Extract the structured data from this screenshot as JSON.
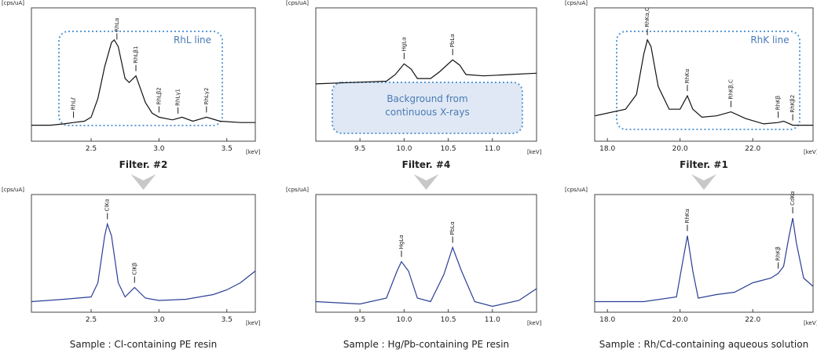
{
  "chart_data": [
    {
      "type": "line",
      "y_label": "[cps/uA]",
      "x_label": "[keV]",
      "color": "#111111",
      "xlim": [
        2.06,
        3.71
      ],
      "ylim": [
        0,
        100
      ],
      "xticks": [
        2.5,
        {
          "value": 3.0,
          "label": "3.0"
        },
        3.5
      ],
      "x": [
        2.06,
        2.2,
        2.3,
        2.37,
        2.45,
        2.5,
        2.55,
        2.6,
        2.65,
        2.67,
        2.7,
        2.75,
        2.78,
        2.83,
        2.9,
        2.95,
        3.0,
        3.1,
        3.17,
        3.25,
        3.35,
        3.45,
        3.6,
        3.71
      ],
      "values": [
        12,
        12,
        13,
        14,
        15,
        18,
        32,
        56,
        74,
        76,
        71,
        47,
        44,
        49,
        29,
        21,
        18,
        16,
        18,
        15,
        18,
        15,
        14,
        14
      ],
      "annotations": [
        {
          "text": "RhLℓ",
          "x": 2.37
        },
        {
          "text": "RhLα",
          "x": 2.69
        },
        {
          "text": "RhLβ1",
          "x": 2.83
        },
        {
          "text": "RhLβ2",
          "x": 3.0
        },
        {
          "text": "RhLγ1",
          "x": 3.14
        },
        {
          "text": "RhLγ2",
          "x": 3.35
        }
      ],
      "overlay": [
        "RhL line"
      ]
    },
    {
      "type": "line",
      "y_label": "[cps/uA]",
      "x_label": "[keV]",
      "color": "#111111",
      "xlim": [
        9.0,
        11.5
      ],
      "ylim": [
        0,
        100
      ],
      "xticks": [
        9.5,
        {
          "value": 10.0,
          "label": "10.0"
        },
        10.5,
        {
          "value": 11.0,
          "label": "11.0"
        }
      ],
      "x": [
        9.0,
        9.4,
        9.8,
        9.9,
        10.0,
        10.08,
        10.15,
        10.3,
        10.4,
        10.55,
        10.63,
        10.7,
        10.9,
        11.2,
        11.5
      ],
      "values": [
        43,
        44,
        45,
        50,
        58,
        54,
        47,
        47,
        52,
        61,
        57,
        50,
        49,
        50,
        51
      ],
      "annotations": [
        {
          "text": "HgLα",
          "x": 10.0
        },
        {
          "text": "PbLα",
          "x": 10.55
        }
      ],
      "overlay": [
        "Background from",
        "continuous X-rays"
      ]
    },
    {
      "type": "line",
      "y_label": "[cps/uA]",
      "x_label": "[keV]",
      "color": "#111111",
      "xlim": [
        17.65,
        23.66
      ],
      "ylim": [
        0,
        100
      ],
      "xticks": [
        {
          "value": 18.0,
          "label": "18.0"
        },
        {
          "value": 20.0,
          "label": "20.0"
        },
        {
          "value": 22.0,
          "label": "22.0"
        }
      ],
      "x": [
        17.65,
        18.5,
        18.8,
        19.0,
        19.1,
        19.2,
        19.4,
        19.7,
        20.0,
        20.2,
        20.35,
        20.6,
        21.0,
        21.4,
        21.8,
        22.3,
        22.7,
        22.85,
        23.1,
        23.66
      ],
      "values": [
        19,
        24,
        35,
        65,
        76,
        71,
        41,
        24,
        24,
        34,
        24,
        18,
        19,
        22,
        17,
        13,
        14,
        15,
        12,
        12
      ],
      "annotations": [
        {
          "text": "RhKα,C",
          "x": 19.1
        },
        {
          "text": "RhKα",
          "x": 20.2
        },
        {
          "text": "RhKβ,C",
          "x": 21.4
        },
        {
          "text": "RhKβ",
          "x": 22.7
        },
        {
          "text": "RhKβ2",
          "x": 23.1
        }
      ],
      "overlay": [
        "RhK line"
      ]
    },
    {
      "type": "line",
      "y_label": "[cps/uA]",
      "x_label": "[keV]",
      "color": "#2b3f96",
      "caption": "Sample : Cl-containing PE resin",
      "xlim": [
        2.06,
        3.71
      ],
      "ylim": [
        0,
        100
      ],
      "xticks": [
        2.5,
        {
          "value": 3.0,
          "label": "3.0"
        },
        3.5
      ],
      "x": [
        2.06,
        2.3,
        2.5,
        2.55,
        2.6,
        2.62,
        2.65,
        2.7,
        2.75,
        2.82,
        2.9,
        3.0,
        3.2,
        3.4,
        3.5,
        3.6,
        3.71
      ],
      "values": [
        9,
        11,
        13,
        25,
        65,
        75,
        65,
        25,
        13,
        21,
        12,
        10,
        11,
        15,
        19,
        25,
        35
      ],
      "annotations": [
        {
          "text": "ClKα",
          "x": 2.62
        },
        {
          "text": "ClKβ",
          "x": 2.82
        }
      ]
    },
    {
      "type": "line",
      "y_label": "[cps/uA]",
      "x_label": "[keV]",
      "color": "#2b3f96",
      "caption": "Sample : Hg/Pb-containing PE resin",
      "xlim": [
        9.0,
        11.5
      ],
      "ylim": [
        0,
        100
      ],
      "xticks": [
        9.5,
        {
          "value": 10.0,
          "label": "10.0"
        },
        10.5,
        {
          "value": 11.0,
          "label": "11.0"
        }
      ],
      "x": [
        9.0,
        9.5,
        9.8,
        9.92,
        9.97,
        10.05,
        10.15,
        10.3,
        10.45,
        10.55,
        10.65,
        10.8,
        11.0,
        11.3,
        11.5
      ],
      "values": [
        9,
        7,
        12,
        35,
        43,
        35,
        12,
        9,
        32,
        55,
        35,
        9,
        5,
        10,
        20
      ],
      "annotations": [
        {
          "text": "HgLα",
          "x": 9.97
        },
        {
          "text": "PbLα",
          "x": 10.55
        }
      ]
    },
    {
      "type": "line",
      "y_label": "[cps/uA]",
      "x_label": "[keV]",
      "color": "#2b3f96",
      "caption": "Sample : Rh/Cd-containing aqueous solution",
      "xlim": [
        17.65,
        23.66
      ],
      "ylim": [
        0,
        100
      ],
      "xticks": [
        {
          "value": 18.0,
          "label": "18.0"
        },
        {
          "value": 20.0,
          "label": "20.0"
        },
        {
          "value": 22.0,
          "label": "22.0"
        }
      ],
      "x": [
        17.65,
        19.0,
        19.9,
        20.05,
        20.2,
        20.35,
        20.5,
        21.0,
        21.5,
        22.0,
        22.5,
        22.7,
        22.85,
        23.0,
        23.1,
        23.2,
        23.4,
        23.66
      ],
      "values": [
        9,
        9,
        13,
        39,
        65,
        35,
        12,
        15,
        17,
        25,
        29,
        33,
        39,
        65,
        80,
        59,
        29,
        22
      ],
      "annotations": [
        {
          "text": "RhKα",
          "x": 20.2
        },
        {
          "text": "RhKβ",
          "x": 22.7
        },
        {
          "text": "CdKα",
          "x": 23.1
        }
      ]
    }
  ],
  "filters": [
    "Filter. #2",
    "Filter. #4",
    "Filter. #1"
  ]
}
